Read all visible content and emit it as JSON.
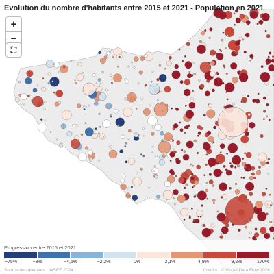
{
  "title": "Evolution du nombre d'habitants entre 2015 et 2021 - Population en 2021",
  "controls": {
    "zoom_in": "+",
    "zoom_out": "−",
    "fullscreen": "⛶"
  },
  "legend": {
    "title": "Progression entre 2015 et 2021",
    "ticks": [
      "−75%",
      "−8%",
      "−4,5%",
      "−2,2%",
      "0%",
      "2,1%",
      "4,9%",
      "9,2%",
      "170%"
    ],
    "colors": [
      "#253d7a",
      "#3f71ad",
      "#89b4d8",
      "#d2e3ef",
      "#fbe6dc",
      "#e49777",
      "#c9493c",
      "#9a1a2a"
    ]
  },
  "source": "Source des données : INSEE 2024",
  "credits": "Crédits : © Visual Data Flow 2024",
  "colors": {
    "land": "#ececec",
    "sea": "#ffffff",
    "boundary": "#b5b5b5"
  }
}
